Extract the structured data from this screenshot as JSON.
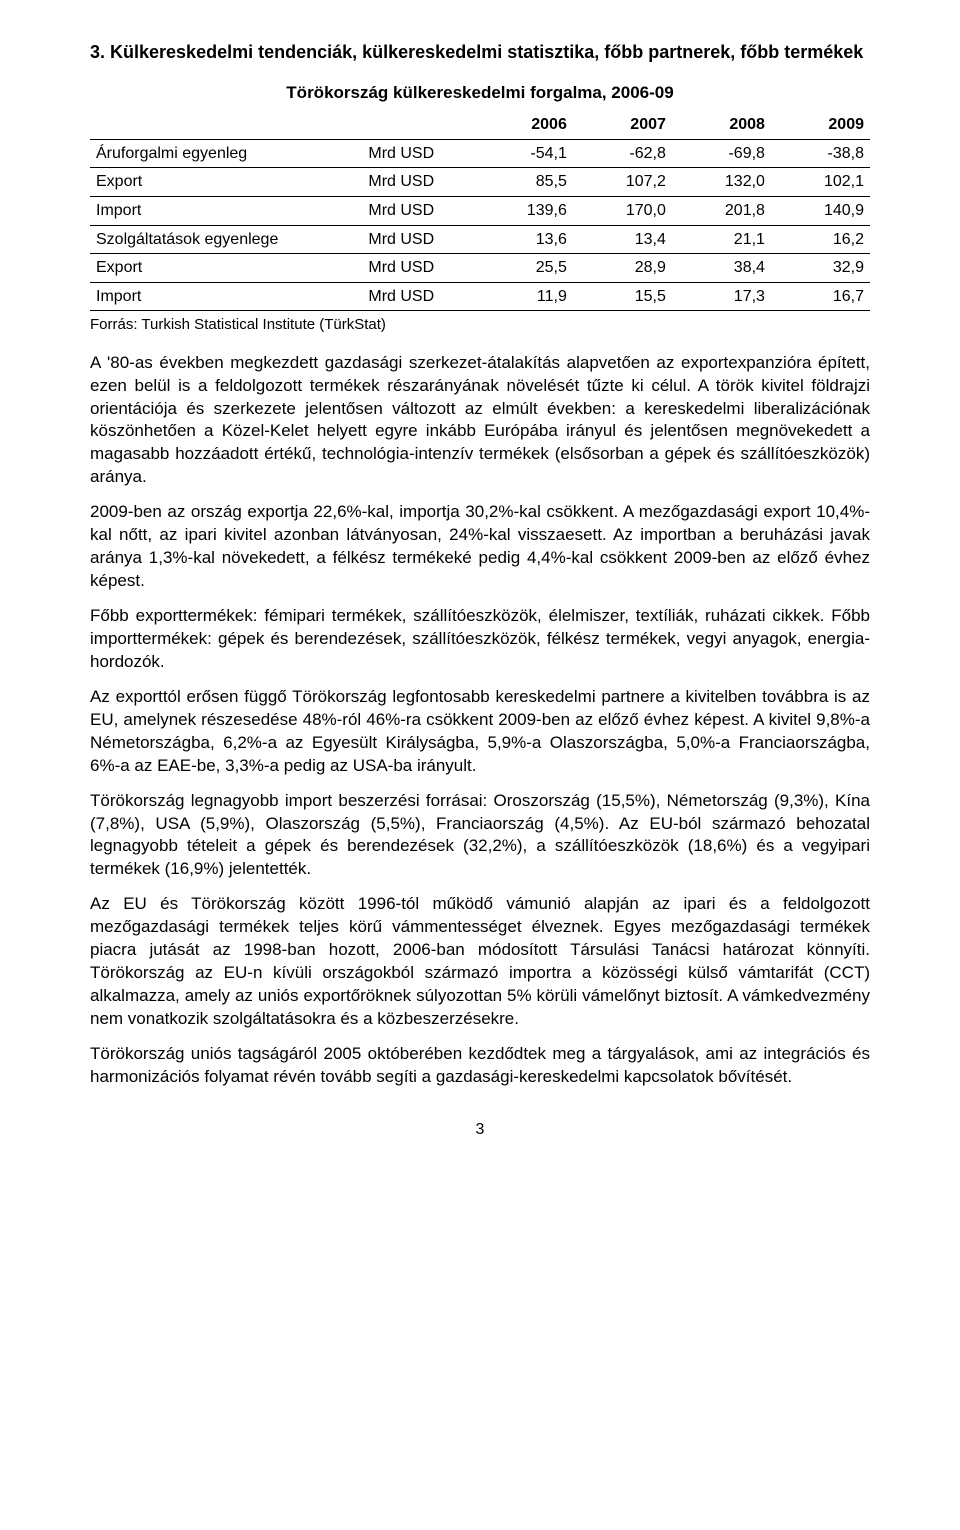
{
  "heading": "3. Külkereskedelmi tendenciák, külkereskedelmi statisztika, főbb partnerek, főbb termékek",
  "table": {
    "title": "Törökország külkereskedelmi forgalma, 2006-09",
    "years": [
      "2006",
      "2007",
      "2008",
      "2009"
    ],
    "rows": [
      {
        "label": "Áruforgalmi egyenleg",
        "unit": "Mrd USD",
        "vals": [
          "-54,1",
          "-62,8",
          "-69,8",
          "-38,8"
        ]
      },
      {
        "label": "Export",
        "unit": "Mrd USD",
        "vals": [
          "85,5",
          "107,2",
          "132,0",
          "102,1"
        ]
      },
      {
        "label": "Import",
        "unit": "Mrd USD",
        "vals": [
          "139,6",
          "170,0",
          "201,8",
          "140,9"
        ]
      },
      {
        "label": "Szolgáltatások egyenlege",
        "unit": "Mrd USD",
        "vals": [
          "13,6",
          "13,4",
          "21,1",
          "16,2"
        ]
      },
      {
        "label": "Export",
        "unit": "Mrd USD",
        "vals": [
          "25,5",
          "28,9",
          "38,4",
          "32,9"
        ]
      },
      {
        "label": "Import",
        "unit": "Mrd USD",
        "vals": [
          "11,9",
          "15,5",
          "17,3",
          "16,7"
        ]
      }
    ],
    "source": "Forrás: Turkish Statistical Institute (TürkStat)"
  },
  "paragraphs": [
    "A '80-as években megkezdett gazdasági szerkezet-átalakítás alapvetően az exportexpanzióra épített, ezen belül is a feldolgozott termékek részarányának növelését tűzte ki célul. A török kivitel földrajzi orientációja és szerkezete jelentősen változott az elmúlt években: a kereskedelmi liberalizációnak köszönhetően a Közel-Kelet helyett egyre inkább Európába irányul és jelentősen megnövekedett a magasabb hozzáadott értékű, technológia-intenzív termékek (elsősorban a gépek és szállítóeszközök) aránya.",
    "2009-ben az ország exportja 22,6%-kal, importja 30,2%-kal csökkent. A mezőgazdasági export 10,4%-kal nőtt, az ipari kivitel azonban látványosan, 24%-kal visszaesett. Az importban a beruházási javak aránya 1,3%-kal növekedett, a félkész termékeké pedig 4,4%-kal csökkent 2009-ben az előző évhez képest.",
    "Főbb exporttermékek: fémipari termékek, szállítóeszközök, élelmiszer, textíliák, ruházati cikkek. Főbb importtermékek: gépek és berendezések, szállítóeszközök, félkész termékek, vegyi anyagok, energia-hordozók.",
    "Az exporttól erősen függő Törökország legfontosabb kereskedelmi partnere a kivitelben továbbra is az EU, amelynek részesedése 48%-ról 46%-ra csökkent 2009-ben az előző évhez képest. A kivitel 9,8%-a Németországba, 6,2%-a az Egyesült Királyságba, 5,9%-a Olaszországba, 5,0%-a Franciaországba, 6%-a az EAE-be, 3,3%-a pedig az USA-ba irányult.",
    "Törökország legnagyobb import beszerzési forrásai: Oroszország (15,5%), Németország (9,3%), Kína (7,8%), USA (5,9%), Olaszország (5,5%), Franciaország (4,5%). Az EU-ból származó behozatal legnagyobb tételeit a gépek és berendezések (32,2%), a szállítóeszközök (18,6%) és a vegyipari termékek (16,9%) jelentették.",
    "Az EU és Törökország között 1996-tól működő vámunió alapján az ipari és a feldolgozott mezőgazdasági termékek teljes körű vámmentességet élveznek. Egyes mezőgazdasági termékek piacra jutását az 1998-ban hozott, 2006-ban módosított Társulási Tanácsi határozat könnyíti. Törökország az EU-n kívüli országokból származó importra a közösségi külső vámtarifát (CCT) alkalmazza, amely az uniós exportőröknek súlyozottan 5% körüli vámelőnyt biztosít. A vámkedvezmény nem vonatkozik szolgáltatásokra és a közbeszerzésekre.",
    "Törökország uniós tagságáról 2005 októberében kezdődtek meg a tárgyalások, ami az integrációs és harmonizációs folyamat révén tovább segíti a gazdasági-kereskedelmi kapcsolatok bővítését."
  ],
  "page_number": "3"
}
